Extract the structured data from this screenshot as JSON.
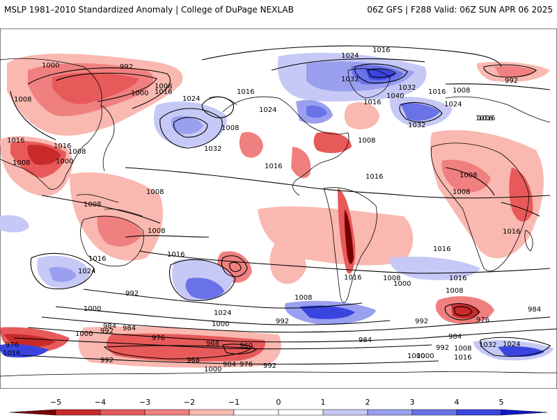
{
  "header": {
    "left": "MSLP 1981–2010 Standardized Anomaly | College of DuPage NEXLAB",
    "right": "06Z GFS | F288 Valid: 06Z SUN APR 06 2025"
  },
  "colors": {
    "neg5": "#7a0000",
    "neg4": "#c92a2a",
    "neg3": "#e85a5a",
    "neg2": "#f08080",
    "neg1": "#f9b8b0",
    "zero": "#ffffff",
    "pos1": "#c6c9f5",
    "pos2": "#9aa0ef",
    "pos3": "#6a72e8",
    "pos4": "#3a45e0",
    "pos5": "#1017c8",
    "coast": "#000000"
  },
  "map_labels": [
    {
      "text": "1016"
    },
    {
      "text": "1024"
    },
    {
      "text": "1000"
    },
    {
      "text": "992"
    },
    {
      "text": "1008"
    },
    {
      "text": "1000"
    },
    {
      "text": "1016"
    },
    {
      "text": "1032"
    },
    {
      "text": "1040"
    },
    {
      "text": "1032"
    },
    {
      "text": "1016"
    },
    {
      "text": "1008"
    },
    {
      "text": "992"
    },
    {
      "text": "1008"
    },
    {
      "text": "1024"
    },
    {
      "text": "1016"
    },
    {
      "text": "1024"
    },
    {
      "text": "1016"
    },
    {
      "text": "1008"
    },
    {
      "text": "1032"
    },
    {
      "text": "1024"
    },
    {
      "text": "1032"
    },
    {
      "text": "1016"
    },
    {
      "text": "1016"
    },
    {
      "text": "1016"
    },
    {
      "text": "1008"
    },
    {
      "text": "1008"
    },
    {
      "text": "1000"
    },
    {
      "text": "1016"
    },
    {
      "text": "1008"
    },
    {
      "text": "1016"
    },
    {
      "text": "1008"
    },
    {
      "text": "1008"
    },
    {
      "text": "1008"
    },
    {
      "text": "1016"
    },
    {
      "text": "1016"
    },
    {
      "text": "1016"
    },
    {
      "text": "1008"
    },
    {
      "text": "1016"
    },
    {
      "text": "1024"
    },
    {
      "text": "1008"
    },
    {
      "text": "992"
    },
    {
      "text": "1000"
    },
    {
      "text": "1016"
    },
    {
      "text": "1024"
    },
    {
      "text": "1008"
    },
    {
      "text": "1016"
    },
    {
      "text": "1008"
    },
    {
      "text": "1000"
    },
    {
      "text": "1016"
    },
    {
      "text": "1008"
    },
    {
      "text": "984"
    },
    {
      "text": "976"
    },
    {
      "text": "1000"
    },
    {
      "text": "992"
    },
    {
      "text": "992"
    },
    {
      "text": "984"
    },
    {
      "text": "984"
    },
    {
      "text": "992"
    },
    {
      "text": "1000"
    },
    {
      "text": "984"
    },
    {
      "text": "976"
    },
    {
      "text": "968"
    },
    {
      "text": "960"
    },
    {
      "text": "968"
    },
    {
      "text": "984"
    },
    {
      "text": "976"
    },
    {
      "text": "992"
    },
    {
      "text": "1000"
    },
    {
      "text": "984"
    },
    {
      "text": "992"
    },
    {
      "text": "1000"
    },
    {
      "text": "1008"
    },
    {
      "text": "1016"
    },
    {
      "text": "1032"
    },
    {
      "text": "1024"
    },
    {
      "text": "976"
    },
    {
      "text": "1016"
    },
    {
      "text": "1000"
    },
    {
      "text": "992"
    }
  ],
  "colorbar": {
    "ticks": [
      "−5",
      "−4",
      "−3",
      "−2",
      "−1",
      "0",
      "1",
      "2",
      "3",
      "4",
      "5"
    ]
  }
}
